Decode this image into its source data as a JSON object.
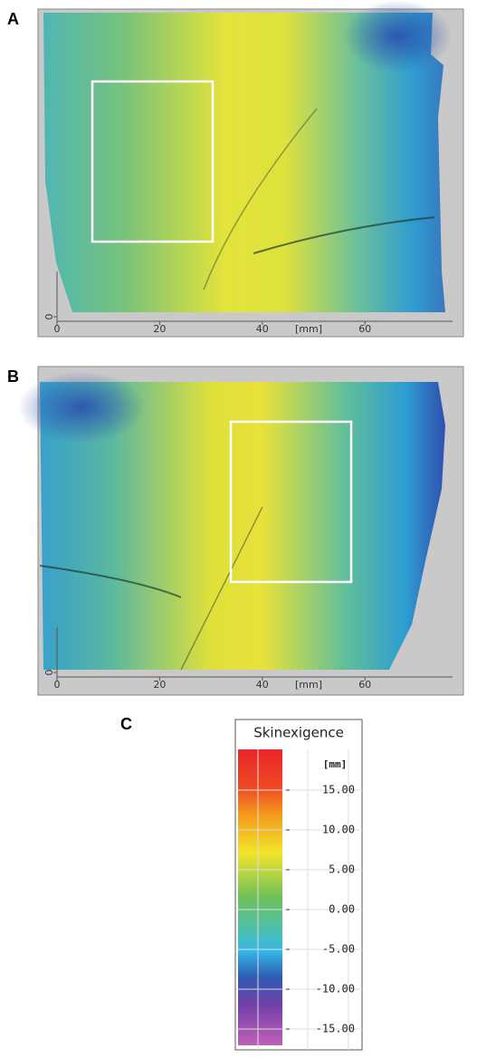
{
  "panels": [
    {
      "label": "A",
      "xticks": [
        0,
        20,
        40,
        60
      ],
      "x_unit": "[mm]",
      "yticks": [
        0
      ]
    },
    {
      "label": "B",
      "xticks": [
        0,
        20,
        40,
        60
      ],
      "x_unit": "[mm]",
      "yticks": [
        0
      ]
    }
  ],
  "colorbar": {
    "label": "C",
    "title": "Skinexigence",
    "unit": "[mm]",
    "ticks": [
      {
        "value": 15,
        "label": "15.00"
      },
      {
        "value": 10,
        "label": "10.00"
      },
      {
        "value": 5,
        "label": "5.00"
      },
      {
        "value": 0,
        "label": "0.00"
      },
      {
        "value": -5,
        "label": "-5.00"
      },
      {
        "value": -10,
        "label": "-10.00"
      },
      {
        "value": -15,
        "label": "-15.00"
      }
    ]
  }
}
